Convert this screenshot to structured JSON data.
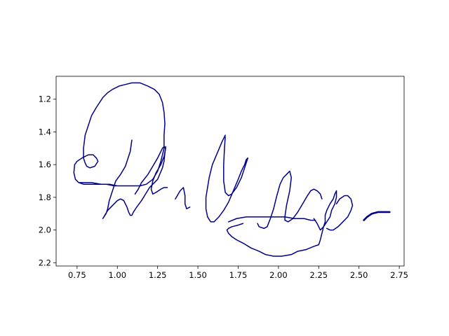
{
  "chart_data": {
    "type": "line",
    "xlim": [
      0.62,
      2.78
    ],
    "ylim": [
      2.22,
      1.06
    ],
    "y_inverted": true,
    "x_ticks": [
      "0.75",
      "1.00",
      "1.25",
      "1.50",
      "1.75",
      "2.00",
      "2.25",
      "2.50",
      "2.75"
    ],
    "y_ticks": [
      "1.2",
      "1.4",
      "1.6",
      "1.8",
      "2.0",
      "2.2"
    ],
    "grid": false,
    "line_color": "#00008b",
    "series": [
      {
        "x": [
          1.09,
          1.08,
          1.05,
          1.02,
          0.99,
          0.97,
          0.95,
          0.94,
          0.93,
          0.91,
          0.94,
          0.97,
          1.0,
          1.02,
          1.04,
          1.06,
          1.07,
          1.08,
          1.08,
          1.09,
          1.1,
          1.12,
          1.15,
          1.2,
          1.25,
          1.28,
          1.29,
          1.295,
          1.3
        ],
        "y": [
          1.45,
          1.52,
          1.61,
          1.66,
          1.7,
          1.76,
          1.82,
          1.87,
          1.9,
          1.93,
          1.88,
          1.85,
          1.82,
          1.81,
          1.82,
          1.86,
          1.89,
          1.91,
          1.91,
          1.91,
          1.89,
          1.86,
          1.82,
          1.74,
          1.69,
          1.62,
          1.58,
          1.53,
          1.49
        ],
        "width": 1.5
      },
      {
        "x": [
          1.11,
          1.13,
          1.15,
          1.19,
          1.22,
          1.25,
          1.27,
          1.28,
          1.29,
          1.3,
          1.29,
          1.27,
          1.24,
          1.22,
          1.21,
          1.22,
          1.24,
          1.27,
          1.29,
          1.31
        ],
        "y": [
          1.78,
          1.75,
          1.71,
          1.66,
          1.61,
          1.56,
          1.52,
          1.5,
          1.49,
          1.5,
          1.55,
          1.6,
          1.65,
          1.7,
          1.75,
          1.78,
          1.77,
          1.75,
          1.74,
          1.74
        ]
      },
      {
        "x": [
          1.0,
          0.95,
          0.9,
          0.84,
          0.79,
          0.76,
          0.74,
          0.73,
          0.735,
          0.75,
          0.78,
          0.82,
          0.85,
          0.87,
          0.88,
          0.86,
          0.83,
          0.81,
          0.8,
          0.79,
          0.79,
          0.8,
          0.82,
          0.84,
          0.87,
          0.89,
          0.91,
          0.94,
          0.97,
          1.01,
          1.05,
          1.09,
          1.14,
          1.19,
          1.23,
          1.26,
          1.28,
          1.29,
          1.295,
          1.29,
          1.29,
          1.27,
          1.25,
          1.22,
          1.18,
          1.14,
          1.11,
          1.09,
          1.06,
          1.02,
          0.98,
          0.93,
          0.89,
          0.84,
          0.79,
          0.76
        ],
        "y": [
          1.73,
          1.72,
          1.72,
          1.71,
          1.71,
          1.71,
          1.69,
          1.65,
          1.6,
          1.58,
          1.56,
          1.54,
          1.54,
          1.56,
          1.58,
          1.61,
          1.62,
          1.61,
          1.59,
          1.56,
          1.5,
          1.42,
          1.36,
          1.3,
          1.25,
          1.22,
          1.19,
          1.16,
          1.14,
          1.12,
          1.11,
          1.1,
          1.1,
          1.12,
          1.14,
          1.17,
          1.22,
          1.28,
          1.35,
          1.42,
          1.5,
          1.58,
          1.64,
          1.69,
          1.72,
          1.73,
          1.73,
          1.73,
          1.73,
          1.73,
          1.73,
          1.72,
          1.72,
          1.72,
          1.72,
          1.71
        ]
      },
      {
        "x": [
          1.36,
          1.39,
          1.41,
          1.42,
          1.42,
          1.43,
          1.45
        ],
        "y": [
          1.81,
          1.76,
          1.74,
          1.79,
          1.84,
          1.87,
          1.86
        ]
      },
      {
        "x": [
          1.67,
          1.65,
          1.62,
          1.59,
          1.57,
          1.56,
          1.55,
          1.55,
          1.56,
          1.58,
          1.6,
          1.63,
          1.66,
          1.69,
          1.72,
          1.75,
          1.77,
          1.79,
          1.8,
          1.81
        ],
        "y": [
          1.42,
          1.46,
          1.53,
          1.6,
          1.68,
          1.74,
          1.8,
          1.87,
          1.92,
          1.95,
          1.95,
          1.92,
          1.88,
          1.83,
          1.76,
          1.69,
          1.64,
          1.6,
          1.57,
          1.56
        ]
      },
      {
        "x": [
          1.81,
          1.79,
          1.77,
          1.74,
          1.71,
          1.69,
          1.67,
          1.66,
          1.66,
          1.665,
          1.67
        ],
        "y": [
          1.56,
          1.62,
          1.68,
          1.74,
          1.78,
          1.79,
          1.77,
          1.7,
          1.6,
          1.5,
          1.43
        ]
      },
      {
        "x": [
          1.78,
          1.75,
          1.71,
          1.69,
          1.68,
          1.69,
          1.71,
          1.74,
          1.78,
          1.83,
          1.88,
          1.92,
          1.97,
          2.02,
          2.08,
          2.12,
          2.17,
          2.22,
          2.25,
          2.26,
          2.27,
          2.28,
          2.29,
          2.29,
          2.3,
          2.32,
          2.34,
          2.35,
          2.36,
          2.36,
          2.35,
          2.33,
          2.32,
          2.3,
          2.28,
          2.26,
          2.24,
          2.22
        ],
        "y": [
          1.96,
          1.97,
          1.98,
          1.99,
          2.0,
          2.02,
          2.04,
          2.06,
          2.08,
          2.11,
          2.13,
          2.15,
          2.16,
          2.16,
          2.15,
          2.13,
          2.12,
          2.1,
          2.09,
          2.06,
          2.02,
          1.98,
          1.95,
          1.91,
          1.88,
          1.84,
          1.81,
          1.78,
          1.76,
          1.8,
          1.84,
          1.88,
          1.92,
          1.95,
          1.98,
          2.0,
          1.96,
          1.93
        ]
      },
      {
        "x": [
          1.69,
          1.74,
          1.8,
          1.86,
          1.92,
          1.98,
          2.04,
          2.1,
          2.16,
          2.2,
          2.23
        ],
        "y": [
          1.95,
          1.93,
          1.92,
          1.92,
          1.92,
          1.92,
          1.92,
          1.93,
          1.93,
          1.94,
          1.94
        ]
      },
      {
        "x": [
          1.87,
          1.88,
          1.91,
          1.93,
          1.95,
          1.97,
          1.99,
          2.01,
          2.03,
          2.05,
          2.07,
          2.08,
          2.07,
          2.05,
          2.04,
          2.04,
          2.06,
          2.09,
          2.12,
          2.15,
          2.18,
          2.2,
          2.22,
          2.24,
          2.26,
          2.27
        ],
        "y": [
          1.96,
          1.98,
          1.99,
          1.98,
          1.93,
          1.87,
          1.79,
          1.72,
          1.68,
          1.66,
          1.64,
          1.68,
          1.76,
          1.85,
          1.92,
          1.94,
          1.95,
          1.93,
          1.89,
          1.84,
          1.79,
          1.76,
          1.75,
          1.76,
          1.78,
          1.81
        ]
      },
      {
        "x": [
          2.36,
          2.38,
          2.41,
          2.43,
          2.45,
          2.46,
          2.45,
          2.43,
          2.4,
          2.37,
          2.34,
          2.32,
          2.3
        ],
        "y": [
          1.84,
          1.81,
          1.79,
          1.79,
          1.81,
          1.85,
          1.88,
          1.92,
          1.95,
          1.98,
          2.0,
          2.0,
          1.99
        ]
      },
      {
        "x": [
          2.53,
          2.55,
          2.58,
          2.62,
          2.66,
          2.69
        ],
        "y": [
          1.94,
          1.92,
          1.9,
          1.89,
          1.89,
          1.89
        ],
        "width": 2.6
      }
    ]
  }
}
